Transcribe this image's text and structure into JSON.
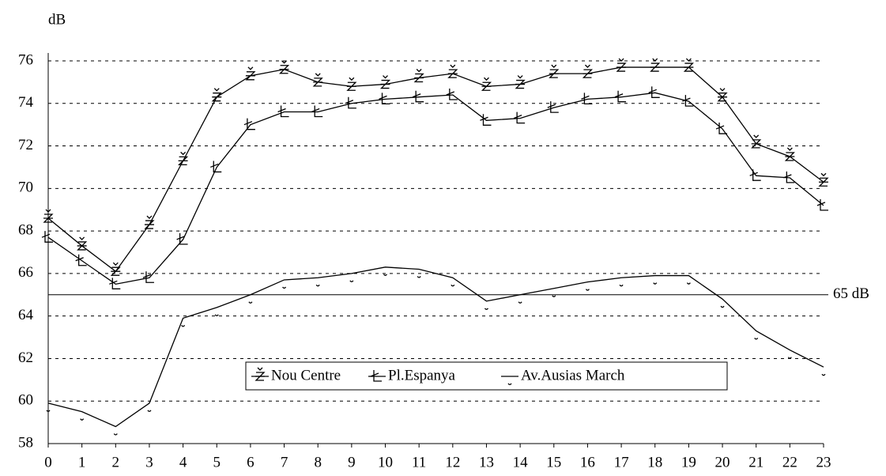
{
  "chart_data": {
    "type": "line",
    "y_label": "dB",
    "x": [
      0,
      1,
      2,
      3,
      4,
      5,
      6,
      7,
      8,
      9,
      10,
      11,
      12,
      13,
      14,
      15,
      16,
      17,
      18,
      19,
      20,
      21,
      22,
      23
    ],
    "xlim": [
      0,
      23
    ],
    "xticks": [
      0,
      1,
      2,
      3,
      4,
      5,
      6,
      7,
      8,
      9,
      10,
      11,
      12,
      13,
      14,
      15,
      16,
      17,
      18,
      19,
      20,
      21,
      22,
      23
    ],
    "ylim": [
      58,
      76
    ],
    "yticks": [
      58,
      60,
      62,
      64,
      66,
      68,
      70,
      72,
      74,
      76
    ],
    "grid": true,
    "reference_line": {
      "value": 65,
      "label": "65 dB"
    },
    "series": [
      {
        "name": "Nou Centre",
        "color": "#000000",
        "marker": "wedge",
        "values": [
          68.6,
          67.3,
          66.1,
          68.3,
          71.3,
          74.3,
          75.3,
          75.6,
          75.0,
          74.8,
          74.9,
          75.2,
          75.4,
          74.8,
          74.9,
          75.4,
          75.4,
          75.7,
          75.7,
          75.7,
          74.3,
          72.1,
          71.5,
          70.3
        ]
      },
      {
        "name": "Pl.Espanya",
        "color": "#000000",
        "marker": "ell",
        "values": [
          67.7,
          66.6,
          65.5,
          65.8,
          67.6,
          71.0,
          73.0,
          73.6,
          73.6,
          74.0,
          74.2,
          74.3,
          74.4,
          73.2,
          73.3,
          73.8,
          74.2,
          74.3,
          74.5,
          74.1,
          72.8,
          70.6,
          70.5,
          69.2
        ]
      },
      {
        "name": "Av.Ausias March",
        "color": "#000000",
        "marker": "dot",
        "values": [
          59.9,
          59.5,
          58.8,
          59.9,
          63.9,
          64.4,
          65.0,
          65.7,
          65.8,
          66.0,
          66.3,
          66.2,
          65.8,
          64.7,
          65.0,
          65.3,
          65.6,
          65.8,
          65.9,
          65.9,
          64.8,
          63.3,
          62.4,
          61.6
        ]
      }
    ]
  }
}
